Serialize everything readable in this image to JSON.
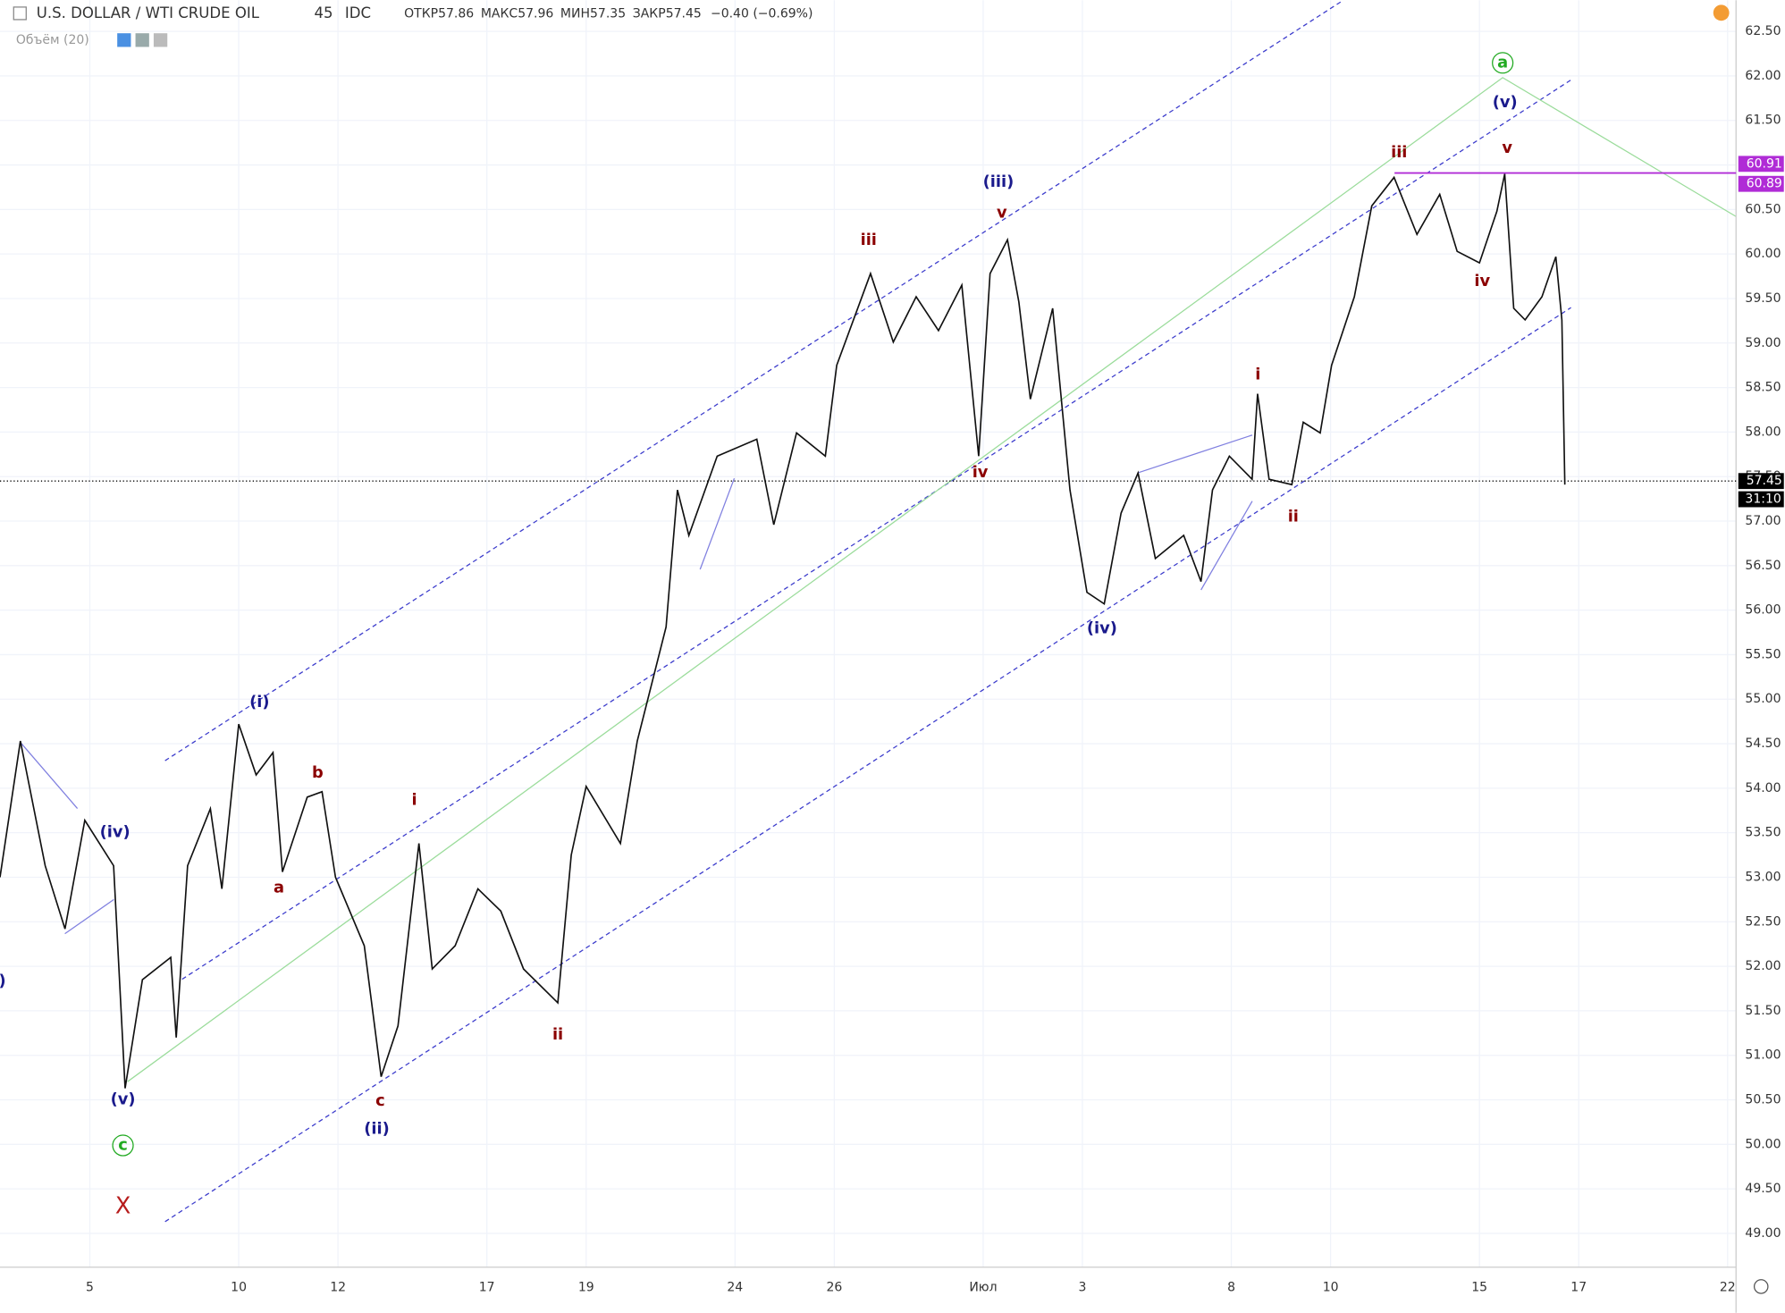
{
  "chart_data": {
    "type": "line",
    "header": {
      "symbol": "U.S. DOLLAR / WTI CRUDE OIL",
      "interval": "45",
      "source": "IDC",
      "ohlc": [
        {
          "key": "ОТКР",
          "value": "57.86"
        },
        {
          "key": "МАКС",
          "value": "57.96"
        },
        {
          "key": "МИН",
          "value": "57.35"
        },
        {
          "key": "ЗАКР",
          "value": "57.45"
        }
      ],
      "change": "−0.40 (−0.69%)",
      "indicator": "Объём (20)"
    },
    "color": "#111111",
    "x": [
      -1.81,
      -1.4,
      -0.9,
      -0.5,
      -0.1,
      0.48,
      0.71,
      1.06,
      1.63,
      1.74,
      1.97,
      2.43,
      2.66,
      3.0,
      3.35,
      3.69,
      3.88,
      4.38,
      4.68,
      4.95,
      5.53,
      5.87,
      6.21,
      6.63,
      6.9,
      7.36,
      7.82,
      8.28,
      8.74,
      9.43,
      9.7,
      10.0,
      10.69,
      11.03,
      11.61,
      11.84,
      12.07,
      12.64,
      13.44,
      13.78,
      14.24,
      14.82,
      15.05,
      15.73,
      16.19,
      16.65,
      17.1,
      17.57,
      17.91,
      18.14,
      18.49,
      18.72,
      18.95,
      19.4,
      19.75,
      20.09,
      20.44,
      20.78,
      21.12,
      21.47,
      22.04,
      22.39,
      22.62,
      22.96,
      23.42,
      23.53,
      23.76,
      24.22,
      24.45,
      24.79,
      25.02,
      25.48,
      25.83,
      26.28,
      26.74,
      27.2,
      27.55,
      28.0,
      28.35,
      28.51,
      28.69,
      28.92,
      29.26,
      29.54,
      29.66,
      29.72
    ],
    "values": [
      53.0,
      54.53,
      53.13,
      52.42,
      53.64,
      53.13,
      50.63,
      51.85,
      52.1,
      51.2,
      53.13,
      53.77,
      52.87,
      54.72,
      54.15,
      54.4,
      53.06,
      53.9,
      53.96,
      53.0,
      52.23,
      50.76,
      51.33,
      53.38,
      51.97,
      52.23,
      52.87,
      52.62,
      51.97,
      51.59,
      53.25,
      54.02,
      53.38,
      54.53,
      55.81,
      57.35,
      56.84,
      57.73,
      57.92,
      56.96,
      57.99,
      57.73,
      58.75,
      59.78,
      59.01,
      59.52,
      59.14,
      59.65,
      57.73,
      59.78,
      60.16,
      59.46,
      58.37,
      59.39,
      57.35,
      56.2,
      56.07,
      57.09,
      57.54,
      56.58,
      56.84,
      56.32,
      57.35,
      57.73,
      57.47,
      58.43,
      57.47,
      57.41,
      58.11,
      57.99,
      58.75,
      59.52,
      60.54,
      60.86,
      60.22,
      60.67,
      60.03,
      59.9,
      60.48,
      60.9,
      59.39,
      59.26,
      59.52,
      59.97,
      59.26,
      57.41
    ],
    "xlim": [
      -1.81,
      33.17
    ],
    "ylim": [
      48.62,
      62.85
    ],
    "xticks": [
      {
        "value": 0,
        "label": "5"
      },
      {
        "value": 3,
        "label": "10"
      },
      {
        "value": 5,
        "label": "12"
      },
      {
        "value": 8,
        "label": "17"
      },
      {
        "value": 10,
        "label": "19"
      },
      {
        "value": 13,
        "label": "24"
      },
      {
        "value": 15,
        "label": "26"
      },
      {
        "value": 18,
        "label": "Июл"
      },
      {
        "value": 20,
        "label": "3"
      },
      {
        "value": 23,
        "label": "8"
      },
      {
        "value": 25,
        "label": "10"
      },
      {
        "value": 28,
        "label": "15"
      },
      {
        "value": 30,
        "label": "17"
      },
      {
        "value": 33,
        "label": "22"
      }
    ],
    "yticks": [
      {
        "value": 49,
        "label": "49.00"
      },
      {
        "value": 49.5,
        "label": "49.50"
      },
      {
        "value": 50,
        "label": "50.00"
      },
      {
        "value": 50.5,
        "label": "50.50"
      },
      {
        "value": 51,
        "label": "51.00"
      },
      {
        "value": 51.5,
        "label": "51.50"
      },
      {
        "value": 52,
        "label": "52.00"
      },
      {
        "value": 52.5,
        "label": "52.50"
      },
      {
        "value": 53,
        "label": "53.00"
      },
      {
        "value": 53.5,
        "label": "53.50"
      },
      {
        "value": 54,
        "label": "54.00"
      },
      {
        "value": 54.5,
        "label": "54.50"
      },
      {
        "value": 55,
        "label": "55.00"
      },
      {
        "value": 55.5,
        "label": "55.50"
      },
      {
        "value": 56,
        "label": "56.00"
      },
      {
        "value": 56.5,
        "label": "56.50"
      },
      {
        "value": 57,
        "label": "57.00"
      },
      {
        "value": 57.5,
        "label": "57.50"
      },
      {
        "value": 58,
        "label": "58.00"
      },
      {
        "value": 58.5,
        "label": "58.50"
      },
      {
        "value": 59,
        "label": "59.00"
      },
      {
        "value": 59.5,
        "label": "59.50"
      },
      {
        "value": 60,
        "label": "60.00"
      },
      {
        "value": 60.5,
        "label": "60.50"
      },
      {
        "value": 61,
        "label": "61.00"
      },
      {
        "value": 61.5,
        "label": "61.50"
      },
      {
        "value": 62,
        "label": "62.00"
      },
      {
        "value": 62.5,
        "label": "62.50"
      }
    ],
    "grid": true,
    "price_lines": [
      60.91,
      60.89
    ],
    "price_line_color": "#b02cd6",
    "last_price": 57.45,
    "countdown": "31:10",
    "annotations": [
      {
        "text": "(iv)",
        "color": "#1a1a8c"
      },
      {
        "text": "(v)",
        "color": "#1a1a8c"
      },
      {
        "text": "c",
        "color": "#22aa22"
      },
      {
        "text": "X",
        "color": "#b71c1c"
      },
      {
        "text": "(i)",
        "color": "#1a1a8c"
      },
      {
        "text": "a",
        "color": "#8b0000"
      },
      {
        "text": "b",
        "color": "#8b0000"
      },
      {
        "text": "i",
        "color": "#8b0000"
      },
      {
        "text": "c",
        "color": "#8b0000"
      },
      {
        "text": "(ii)",
        "color": "#1a1a8c"
      },
      {
        "text": "ii",
        "color": "#8b0000"
      },
      {
        "text": "iii",
        "color": "#8b0000"
      },
      {
        "text": "(iii)",
        "color": "#1a1a8c"
      },
      {
        "text": "v",
        "color": "#8b0000"
      },
      {
        "text": "iv",
        "color": "#8b0000"
      },
      {
        "text": "(iv)",
        "color": "#1a1a8c"
      },
      {
        "text": "i",
        "color": "#8b0000"
      },
      {
        "text": "ii",
        "color": "#8b0000"
      },
      {
        "text": "iii",
        "color": "#8b0000"
      },
      {
        "text": "a",
        "color": "#22aa22"
      },
      {
        "text": "(v)",
        "color": "#1a1a8c"
      },
      {
        "text": "v",
        "color": "#8b0000"
      },
      {
        "text": "iv",
        "color": "#8b0000"
      },
      {
        "text": ")",
        "color": "#1a1a8c"
      }
    ]
  }
}
